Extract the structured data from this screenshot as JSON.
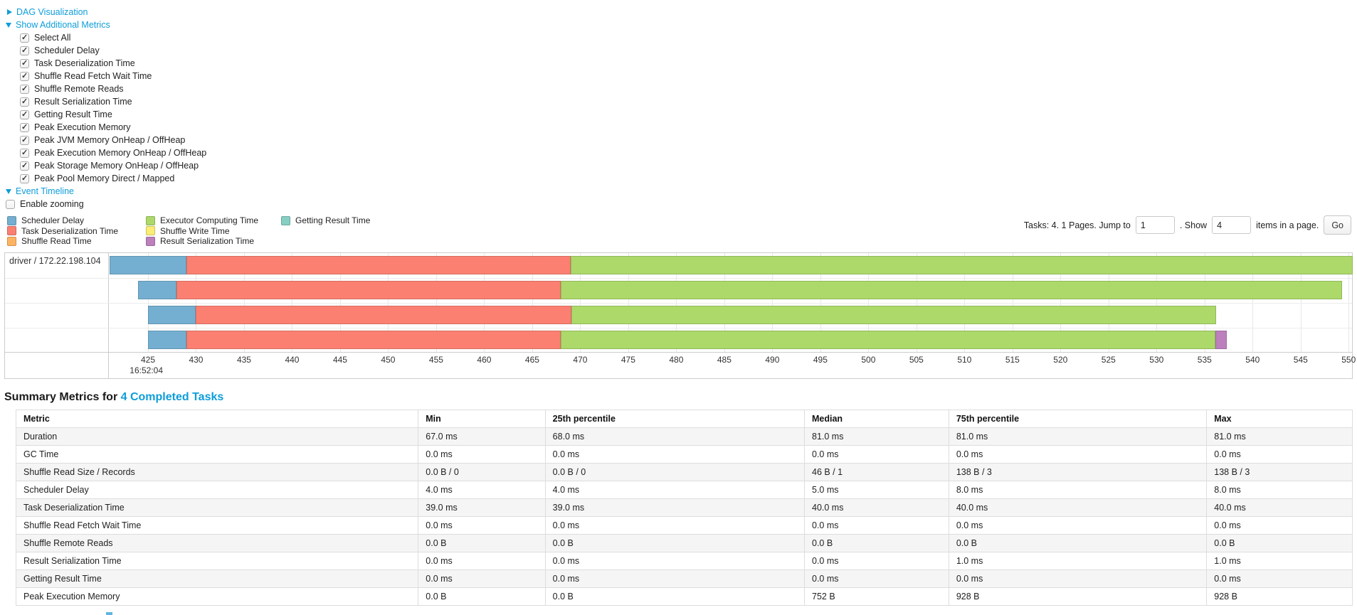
{
  "colors": {
    "link": "#0e9dd9",
    "scheduler_delay": "#74AFD1",
    "task_deserialization": "#FB8072",
    "shuffle_read": "#FDB462",
    "executor_computing": "#ACD96A",
    "shuffle_write": "#FCED75",
    "result_serialization": "#BC80BD",
    "getting_result": "#86CFC2"
  },
  "sections": {
    "dag_label": "DAG Visualization",
    "metrics_label": "Show Additional Metrics",
    "event_timeline_label": "Event Timeline",
    "enable_zooming_label": "Enable zooming",
    "enable_zooming_checked": false
  },
  "metric_checkboxes": [
    {
      "label": "Select All",
      "checked": true
    },
    {
      "label": "Scheduler Delay",
      "checked": true
    },
    {
      "label": "Task Deserialization Time",
      "checked": true
    },
    {
      "label": "Shuffle Read Fetch Wait Time",
      "checked": true
    },
    {
      "label": "Shuffle Remote Reads",
      "checked": true
    },
    {
      "label": "Result Serialization Time",
      "checked": true
    },
    {
      "label": "Getting Result Time",
      "checked": true
    },
    {
      "label": "Peak Execution Memory",
      "checked": true
    },
    {
      "label": "Peak JVM Memory OnHeap / OffHeap",
      "checked": true
    },
    {
      "label": "Peak Execution Memory OnHeap / OffHeap",
      "checked": true
    },
    {
      "label": "Peak Storage Memory OnHeap / OffHeap",
      "checked": true
    },
    {
      "label": "Peak Pool Memory Direct / Mapped",
      "checked": true
    }
  ],
  "legend": [
    {
      "label": "Scheduler Delay",
      "color_key": "scheduler_delay"
    },
    {
      "label": "Task Deserialization Time",
      "color_key": "task_deserialization"
    },
    {
      "label": "Shuffle Read Time",
      "color_key": "shuffle_read"
    },
    {
      "label": "Executor Computing Time",
      "color_key": "executor_computing"
    },
    {
      "label": "Shuffle Write Time",
      "color_key": "shuffle_write"
    },
    {
      "label": "Result Serialization Time",
      "color_key": "result_serialization"
    },
    {
      "label": "Getting Result Time",
      "color_key": "getting_result"
    }
  ],
  "pagination": {
    "tasks_label": "Tasks: 4. 1 Pages. Jump to",
    "jump_value": "1",
    "show_label": ". Show",
    "show_value": "4",
    "items_label": "items in a page.",
    "go_label": "Go"
  },
  "chart_data": {
    "type": "timeline",
    "group_label": "driver / 172.22.198.104",
    "base_time_label": "16:52:04",
    "axis": {
      "min": 421,
      "max": 550.35,
      "unit": "ms"
    },
    "ticks": [
      425,
      430,
      435,
      440,
      445,
      450,
      455,
      460,
      465,
      470,
      475,
      480,
      485,
      490,
      495,
      500,
      505,
      510,
      515,
      520,
      525,
      530,
      535,
      540,
      545,
      550
    ],
    "tasks": [
      {
        "segments": [
          {
            "name": "scheduler-delay",
            "color_key": "scheduler_delay",
            "start": 421.0,
            "end": 429.0
          },
          {
            "name": "task-deserialization-time",
            "color_key": "task_deserialization",
            "start": 429.0,
            "end": 469.0
          },
          {
            "name": "executor-computing-time",
            "color_key": "executor_computing",
            "start": 469.0,
            "end": 550.4
          }
        ]
      },
      {
        "segments": [
          {
            "name": "scheduler-delay",
            "color_key": "scheduler_delay",
            "start": 424.0,
            "end": 428.0
          },
          {
            "name": "task-deserialization-time",
            "color_key": "task_deserialization",
            "start": 428.0,
            "end": 468.0
          },
          {
            "name": "executor-computing-time",
            "color_key": "executor_computing",
            "start": 468.0,
            "end": 549.3
          }
        ]
      },
      {
        "segments": [
          {
            "name": "scheduler-delay",
            "color_key": "scheduler_delay",
            "start": 425.0,
            "end": 430.0
          },
          {
            "name": "task-deserialization-time",
            "color_key": "task_deserialization",
            "start": 430.0,
            "end": 469.1
          },
          {
            "name": "executor-computing-time",
            "color_key": "executor_computing",
            "start": 469.1,
            "end": 536.2
          }
        ]
      },
      {
        "segments": [
          {
            "name": "scheduler-delay",
            "color_key": "scheduler_delay",
            "start": 425.0,
            "end": 429.0
          },
          {
            "name": "task-deserialization-time",
            "color_key": "task_deserialization",
            "start": 429.0,
            "end": 468.0
          },
          {
            "name": "executor-computing-time",
            "color_key": "executor_computing",
            "start": 468.0,
            "end": 536.1
          },
          {
            "name": "result-serialization-time",
            "color_key": "result_serialization",
            "start": 536.1,
            "end": 537.3
          }
        ]
      }
    ]
  },
  "summary": {
    "title_prefix": "Summary Metrics for",
    "title_link": "4 Completed Tasks",
    "table": {
      "headers": [
        "Metric",
        "Min",
        "25th percentile",
        "Median",
        "75th percentile",
        "Max"
      ],
      "col_widths_pct": [
        30.1,
        9.5,
        19.4,
        10.8,
        19.3,
        10.9
      ],
      "rows": [
        [
          "Duration",
          "67.0 ms",
          "68.0 ms",
          "81.0 ms",
          "81.0 ms",
          "81.0 ms"
        ],
        [
          "GC Time",
          "0.0 ms",
          "0.0 ms",
          "0.0 ms",
          "0.0 ms",
          "0.0 ms"
        ],
        [
          "Shuffle Read Size / Records",
          "0.0 B / 0",
          "0.0 B / 0",
          "46 B / 1",
          "138 B / 3",
          "138 B / 3"
        ],
        [
          "Scheduler Delay",
          "4.0 ms",
          "4.0 ms",
          "5.0 ms",
          "8.0 ms",
          "8.0 ms"
        ],
        [
          "Task Deserialization Time",
          "39.0 ms",
          "39.0 ms",
          "40.0 ms",
          "40.0 ms",
          "40.0 ms"
        ],
        [
          "Shuffle Read Fetch Wait Time",
          "0.0 ms",
          "0.0 ms",
          "0.0 ms",
          "0.0 ms",
          "0.0 ms"
        ],
        [
          "Shuffle Remote Reads",
          "0.0 B",
          "0.0 B",
          "0.0 B",
          "0.0 B",
          "0.0 B"
        ],
        [
          "Result Serialization Time",
          "0.0 ms",
          "0.0 ms",
          "0.0 ms",
          "1.0 ms",
          "1.0 ms"
        ],
        [
          "Getting Result Time",
          "0.0 ms",
          "0.0 ms",
          "0.0 ms",
          "0.0 ms",
          "0.0 ms"
        ],
        [
          "Peak Execution Memory",
          "0.0 B",
          "0.0 B",
          "752 B",
          "928 B",
          "928 B"
        ]
      ]
    }
  }
}
